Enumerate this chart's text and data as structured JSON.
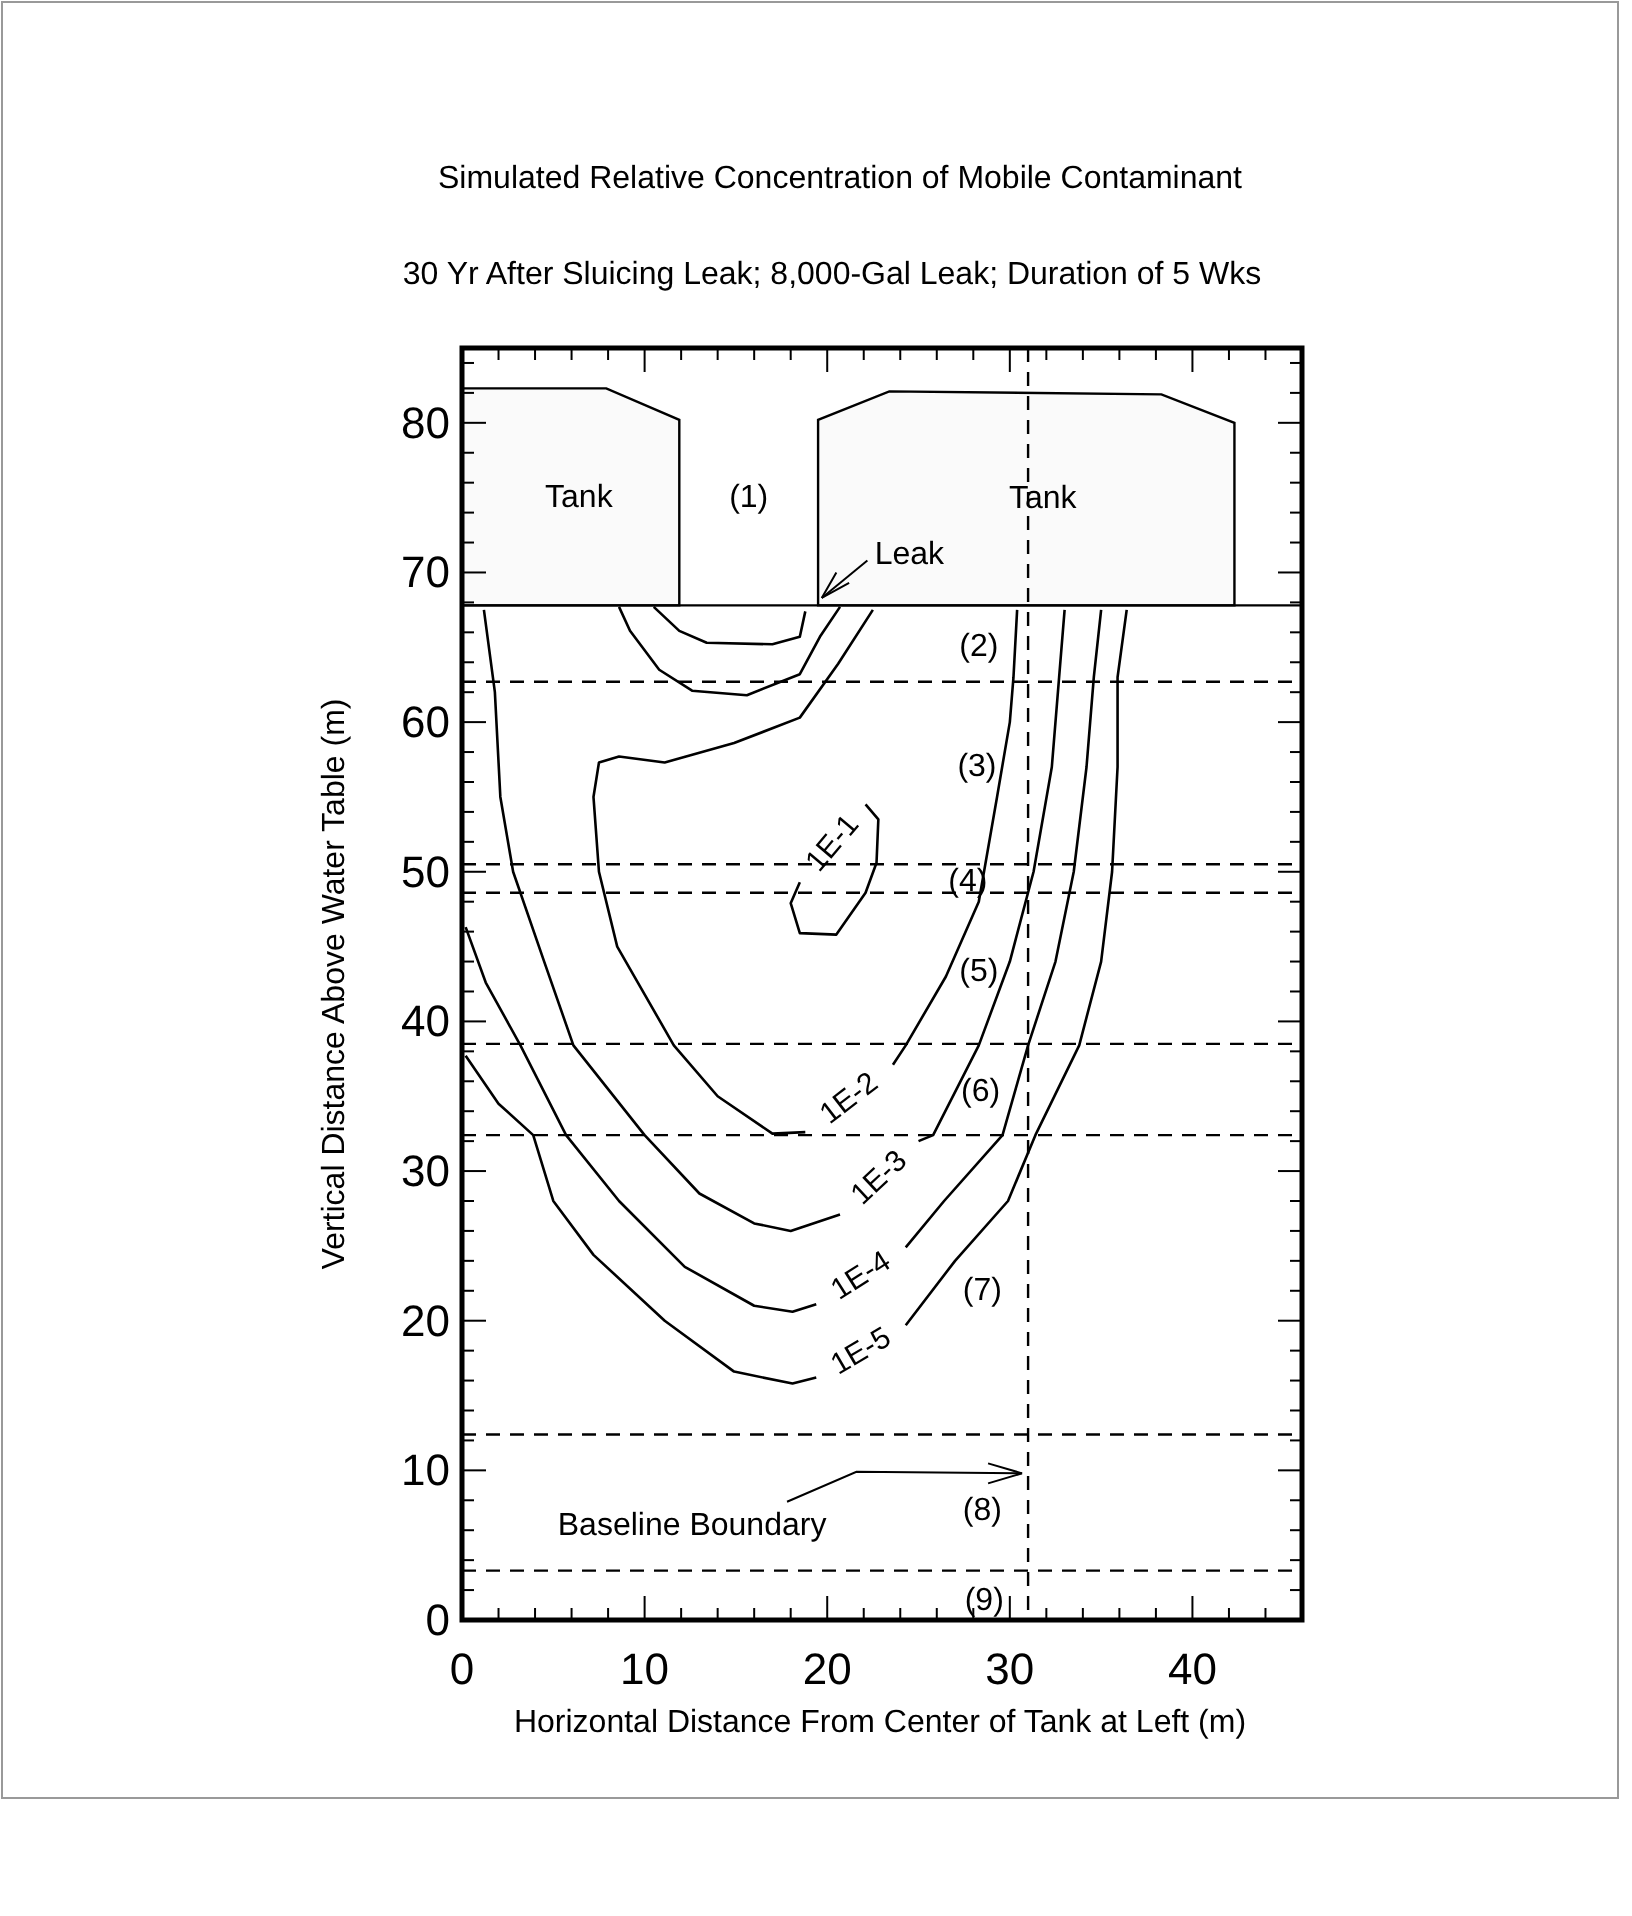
{
  "chart_data": {
    "type": "line",
    "title": "Simulated Relative Concentration of Mobile Contaminant",
    "subtitle": "30 Yr After Sluicing Leak;  8,000-Gal Leak; Duration of 5 Wks",
    "xlabel": "Horizontal Distance From Center of Tank at Left (m)",
    "ylabel": "Vertical Distance Above Water Table (m)",
    "xlim": [
      0,
      46
    ],
    "ylim": [
      0,
      85
    ],
    "xticks": [
      0,
      {
        "value": 2,
        "label": null
      },
      {
        "value": 4,
        "label": null
      },
      {
        "value": 6,
        "label": null
      },
      {
        "value": 8,
        "label": null
      },
      10,
      {
        "value": 12,
        "label": null
      },
      {
        "value": 14,
        "label": null
      },
      {
        "value": 16,
        "label": null
      },
      {
        "value": 18,
        "label": null
      },
      20,
      {
        "value": 22,
        "label": null
      },
      {
        "value": 24,
        "label": null
      },
      {
        "value": 26,
        "label": null
      },
      {
        "value": 28,
        "label": null
      },
      30,
      {
        "value": 32,
        "label": null
      },
      {
        "value": 34,
        "label": null
      },
      {
        "value": 36,
        "label": null
      },
      {
        "value": 38,
        "label": null
      },
      40,
      {
        "value": 42,
        "label": null
      },
      {
        "value": 44,
        "label": null
      }
    ],
    "yticks": [
      0,
      {
        "value": 2,
        "label": null
      },
      {
        "value": 4,
        "label": null
      },
      {
        "value": 6,
        "label": null
      },
      {
        "value": 8,
        "label": null
      },
      10,
      {
        "value": 12,
        "label": null
      },
      {
        "value": 14,
        "label": null
      },
      {
        "value": 16,
        "label": null
      },
      {
        "value": 18,
        "label": null
      },
      20,
      {
        "value": 22,
        "label": null
      },
      {
        "value": 24,
        "label": null
      },
      {
        "value": 26,
        "label": null
      },
      {
        "value": 28,
        "label": null
      },
      30,
      {
        "value": 32,
        "label": null
      },
      {
        "value": 34,
        "label": null
      },
      {
        "value": 36,
        "label": null
      },
      {
        "value": 38,
        "label": null
      },
      40,
      {
        "value": 42,
        "label": null
      },
      {
        "value": 44,
        "label": null
      },
      {
        "value": 46,
        "label": null
      },
      {
        "value": 48,
        "label": null
      },
      50,
      {
        "value": 52,
        "label": null
      },
      {
        "value": 54,
        "label": null
      },
      {
        "value": 56,
        "label": null
      },
      {
        "value": 58,
        "label": null
      },
      60,
      {
        "value": 62,
        "label": null
      },
      {
        "value": 64,
        "label": null
      },
      {
        "value": 66,
        "label": null
      },
      {
        "value": 68,
        "label": null
      },
      70,
      {
        "value": 72,
        "label": null
      },
      {
        "value": 74,
        "label": null
      },
      {
        "value": 76,
        "label": null
      },
      {
        "value": 78,
        "label": null
      },
      80,
      {
        "value": 82,
        "label": null
      },
      {
        "value": 84,
        "label": null
      }
    ],
    "grid": false,
    "marker": "none",
    "line_style": "solid",
    "series": [
      {
        "name": "1E-1",
        "color": "#000000",
        "x": [
          22.1,
          22.8,
          22.7,
          22.1,
          20.5,
          18.5,
          18.0,
          18.5
        ],
        "values": [
          54.5,
          53.5,
          50.6,
          48.6,
          45.8,
          45.9,
          47.9,
          49.3
        ]
      },
      {
        "name": "1E-2",
        "color": "#000000",
        "x": [
          22.5,
          20.6,
          18.5,
          14.9,
          11.1,
          8.6,
          7.5,
          7.2,
          7.5,
          8.5,
          11.6,
          14,
          17,
          18.8,
          21,
          23.6,
          24.3,
          26.5,
          28.3,
          29.3,
          30,
          30.2,
          30.4
        ],
        "values": [
          67.5,
          63.9,
          60.3,
          58.6,
          57.3,
          57.7,
          57.3,
          55,
          50,
          45,
          38.4,
          35,
          32.5,
          32.6,
          null,
          37.1,
          38.4,
          43,
          48,
          55,
          60,
          63,
          67.5
        ]
      },
      {
        "name": "1E-3",
        "color": "#000000",
        "x": [
          1.2,
          1.8,
          2.1,
          2.8,
          4.5,
          6.1,
          10,
          13,
          16,
          18,
          20.7,
          23,
          25,
          25.8,
          28.3,
          30,
          31.3,
          32.3,
          32.7,
          33
        ],
        "values": [
          67.5,
          62,
          55,
          50,
          44,
          38.4,
          32.4,
          28.5,
          26.5,
          26,
          27.1,
          null,
          32,
          32.4,
          38.4,
          44,
          50,
          57,
          63,
          67.5
        ]
      },
      {
        "name": "1E-4",
        "color": "#000000",
        "x": [
          0.2,
          1.3,
          3.2,
          5.7,
          8.6,
          12.2,
          16,
          18.1,
          19.4,
          22,
          24.3,
          26.4,
          29.6,
          31,
          32.5,
          33.5,
          34.2,
          34.6,
          35
        ],
        "values": [
          46.3,
          42.6,
          38.4,
          32.4,
          28,
          23.6,
          21,
          20.6,
          21.1,
          null,
          24.9,
          28,
          32.4,
          38.4,
          44,
          50,
          57,
          63,
          67.5
        ]
      },
      {
        "name": "1E-5",
        "color": "#000000",
        "x": [
          0.2,
          2,
          3.9,
          5,
          7.2,
          11.1,
          14.9,
          18.1,
          19.4,
          22,
          24.3,
          27,
          29.9,
          31.4,
          33.8,
          35,
          35.6,
          35.9,
          35.9,
          36.4
        ],
        "values": [
          37.7,
          34.5,
          32.4,
          28,
          24.4,
          20,
          16.6,
          15.8,
          16.2,
          null,
          19.7,
          24,
          28,
          32.4,
          38.4,
          44,
          50,
          57,
          63,
          67.5
        ]
      },
      {
        "color": "#000000",
        "x": [
          8.6,
          9.2,
          10.8,
          12.6,
          15.6,
          18.5,
          19.6,
          20.7
        ],
        "values": [
          67.7,
          66.1,
          63.5,
          62.1,
          61.8,
          63.2,
          65.7,
          67.7
        ]
      },
      {
        "color": "#000000",
        "x": [
          10.5,
          11.9,
          13.4,
          17,
          18.5,
          18.8
        ],
        "values": [
          67.7,
          66.1,
          65.3,
          65.2,
          65.7,
          67.4
        ]
      }
    ],
    "ref_lines": [
      {
        "axis": "y",
        "value": 67.8,
        "color": "#000000",
        "line_style": "solid"
      },
      {
        "axis": "y",
        "value": 62.7,
        "color": "#000000",
        "line_style": "dashed"
      },
      {
        "axis": "y",
        "value": 50.5,
        "color": "#000000",
        "line_style": "dashed"
      },
      {
        "axis": "y",
        "value": 48.6,
        "color": "#000000",
        "line_style": "dashed"
      },
      {
        "axis": "y",
        "value": 38.5,
        "color": "#000000",
        "line_style": "dashed"
      },
      {
        "axis": "y",
        "value": 32.4,
        "color": "#000000",
        "line_style": "dashed"
      },
      {
        "axis": "y",
        "value": 12.4,
        "color": "#000000",
        "line_style": "dashed"
      },
      {
        "axis": "y",
        "value": 3.3,
        "color": "#000000",
        "line_style": "dashed"
      },
      {
        "axis": "x",
        "value": 31,
        "color": "#000000",
        "line_style": "dashed"
      }
    ],
    "annotations": [
      "Tank",
      "(1)",
      "Tank",
      "Leak",
      "(2)",
      "(3)",
      "(4)",
      "(5)",
      "(6)",
      "(7)",
      {
        "text": "Baseline Boundary",
        "x": 31,
        "y": 9.8
      },
      "(8)",
      "(9)"
    ]
  }
}
